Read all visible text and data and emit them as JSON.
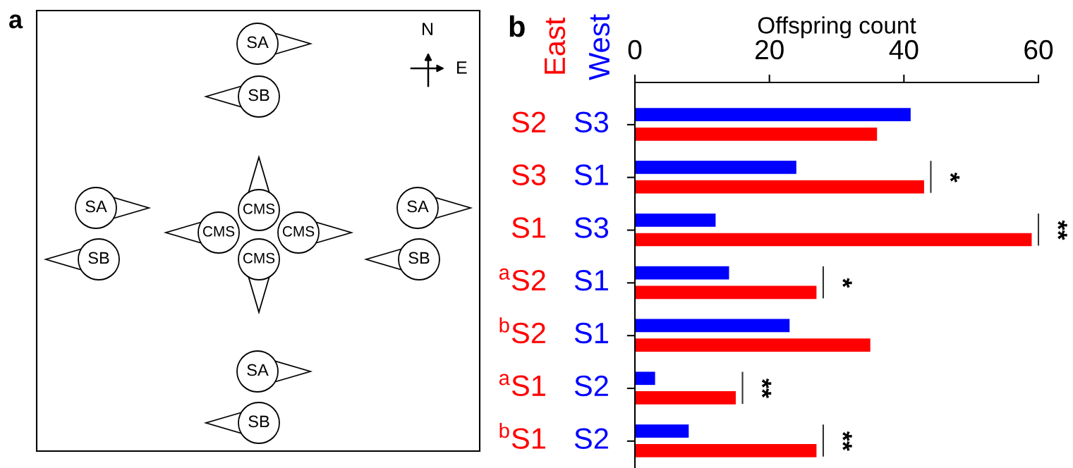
{
  "chart_data": [
    {
      "type": "other",
      "title": "a",
      "annotations": [
        "N",
        "E",
        "SA",
        "SB",
        "SA",
        "SB",
        "CMS",
        "CMS",
        "CMS",
        "CMS",
        "SA",
        "SB",
        "SA",
        "SB"
      ]
    },
    {
      "type": "bar",
      "title": "b",
      "xlabel": "Offspring count",
      "orientation": "horizontal",
      "categories": [
        "S2",
        "S3",
        "S1",
        "$^{a}$S2",
        "$^{b}$S2",
        "$^{a}$S1",
        "$^{b}$S1"
      ],
      "series": [
        {
          "name": "East",
          "color": "#ff0000",
          "values": [
            36,
            43,
            59,
            27,
            35,
            15,
            27
          ]
        },
        {
          "name": "West",
          "color": "#0000ff",
          "values": [
            41,
            24,
            12,
            14,
            23,
            3,
            8
          ]
        }
      ],
      "xlim": [
        0,
        60
      ],
      "xticks": [
        0,
        20,
        40,
        60
      ],
      "grid": false,
      "legend": false,
      "annotations": [
        "S3",
        "S1",
        "S3",
        "S1",
        "S1",
        "S2",
        "S2",
        "*",
        "**",
        "*",
        "**",
        "**"
      ]
    }
  ]
}
